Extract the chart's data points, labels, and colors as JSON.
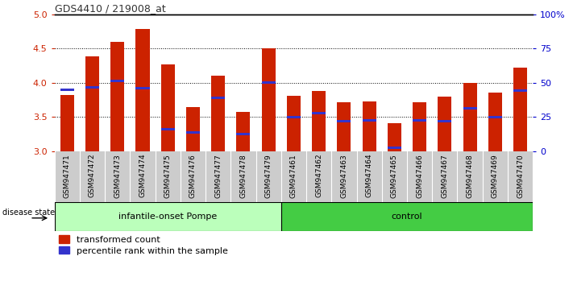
{
  "title": "GDS4410 / 219008_at",
  "samples": [
    "GSM947471",
    "GSM947472",
    "GSM947473",
    "GSM947474",
    "GSM947475",
    "GSM947476",
    "GSM947477",
    "GSM947478",
    "GSM947479",
    "GSM947461",
    "GSM947462",
    "GSM947463",
    "GSM947464",
    "GSM947465",
    "GSM947466",
    "GSM947467",
    "GSM947468",
    "GSM947469",
    "GSM947470"
  ],
  "red_values": [
    3.82,
    4.38,
    4.6,
    4.78,
    4.27,
    3.64,
    4.1,
    3.57,
    4.5,
    3.81,
    3.88,
    3.71,
    3.73,
    3.41,
    3.71,
    3.8,
    4.0,
    3.86,
    4.22
  ],
  "blue_values": [
    3.9,
    3.93,
    4.02,
    3.92,
    3.32,
    3.27,
    3.78,
    3.25,
    4.0,
    3.5,
    3.55,
    3.44,
    3.45,
    3.05,
    3.45,
    3.44,
    3.63,
    3.5,
    3.88
  ],
  "group1_label": "infantile-onset Pompe",
  "group2_label": "control",
  "group1_count": 9,
  "group2_count": 10,
  "ymin": 3.0,
  "ymax": 5.0,
  "yticks": [
    3.0,
    3.5,
    4.0,
    4.5,
    5.0
  ],
  "right_ytick_labels": [
    "0",
    "25",
    "50",
    "75",
    "100%"
  ],
  "bar_color": "#cc2200",
  "blue_color": "#3333cc",
  "group1_bg": "#bbffbb",
  "group2_bg": "#44cc44",
  "tick_bg": "#cccccc",
  "legend_red_label": "transformed count",
  "legend_blue_label": "percentile rank within the sample",
  "bar_width": 0.55,
  "title_color": "#333333",
  "ytick_color": "#cc2200",
  "right_ytick_color": "#0000cc",
  "dotted_lines": [
    3.5,
    4.0,
    4.5
  ],
  "disease_state_label": "disease state"
}
